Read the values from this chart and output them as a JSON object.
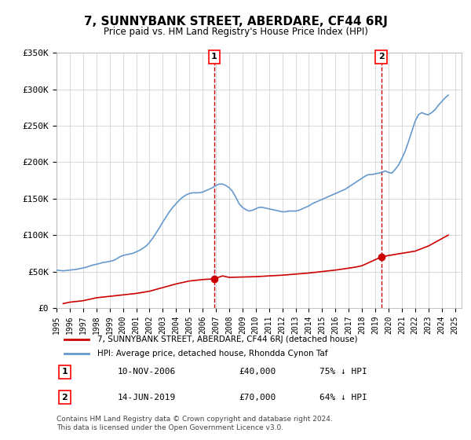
{
  "title": "7, SUNNYBANK STREET, ABERDARE, CF44 6RJ",
  "subtitle": "Price paid vs. HM Land Registry's House Price Index (HPI)",
  "ylabel_ticks": [
    "£0",
    "£50K",
    "£100K",
    "£150K",
    "£200K",
    "£250K",
    "£300K",
    "£350K"
  ],
  "ylim": [
    0,
    350000
  ],
  "yticks": [
    0,
    50000,
    100000,
    150000,
    200000,
    250000,
    300000,
    350000
  ],
  "xmin": 1995.0,
  "xmax": 2025.5,
  "background_color": "#ffffff",
  "grid_color": "#cccccc",
  "hpi_color": "#6699cc",
  "price_color": "#cc0000",
  "vline_color": "#cc0000",
  "vline_style": "dashed",
  "marker1_x": 2006.87,
  "marker1_y": 40000,
  "marker1_label": "1",
  "marker1_date": "10-NOV-2006",
  "marker1_price": "£40,000",
  "marker1_pct": "75% ↓ HPI",
  "marker2_x": 2019.45,
  "marker2_y": 70000,
  "marker2_label": "2",
  "marker2_date": "14-JUN-2019",
  "marker2_price": "£70,000",
  "marker2_pct": "64% ↓ HPI",
  "legend_line1": "7, SUNNYBANK STREET, ABERDARE, CF44 6RJ (detached house)",
  "legend_line2": "HPI: Average price, detached house, Rhondda Cynon Taf",
  "footer1": "Contains HM Land Registry data © Crown copyright and database right 2024.",
  "footer2": "This data is licensed under the Open Government Licence v3.0.",
  "hpi_data_x": [
    1995.0,
    1995.25,
    1995.5,
    1995.75,
    1996.0,
    1996.25,
    1996.5,
    1996.75,
    1997.0,
    1997.25,
    1997.5,
    1997.75,
    1998.0,
    1998.25,
    1998.5,
    1998.75,
    1999.0,
    1999.25,
    1999.5,
    1999.75,
    2000.0,
    2000.25,
    2000.5,
    2000.75,
    2001.0,
    2001.25,
    2001.5,
    2001.75,
    2002.0,
    2002.25,
    2002.5,
    2002.75,
    2003.0,
    2003.25,
    2003.5,
    2003.75,
    2004.0,
    2004.25,
    2004.5,
    2004.75,
    2005.0,
    2005.25,
    2005.5,
    2005.75,
    2006.0,
    2006.25,
    2006.5,
    2006.75,
    2007.0,
    2007.25,
    2007.5,
    2007.75,
    2008.0,
    2008.25,
    2008.5,
    2008.75,
    2009.0,
    2009.25,
    2009.5,
    2009.75,
    2010.0,
    2010.25,
    2010.5,
    2010.75,
    2011.0,
    2011.25,
    2011.5,
    2011.75,
    2012.0,
    2012.25,
    2012.5,
    2012.75,
    2013.0,
    2013.25,
    2013.5,
    2013.75,
    2014.0,
    2014.25,
    2014.5,
    2014.75,
    2015.0,
    2015.25,
    2015.5,
    2015.75,
    2016.0,
    2016.25,
    2016.5,
    2016.75,
    2017.0,
    2017.25,
    2017.5,
    2017.75,
    2018.0,
    2018.25,
    2018.5,
    2018.75,
    2019.0,
    2019.25,
    2019.5,
    2019.75,
    2020.0,
    2020.25,
    2020.5,
    2020.75,
    2021.0,
    2021.25,
    2021.5,
    2021.75,
    2022.0,
    2022.25,
    2022.5,
    2022.75,
    2023.0,
    2023.25,
    2023.5,
    2023.75,
    2024.0,
    2024.25,
    2024.5
  ],
  "hpi_data_y": [
    52000,
    51500,
    51000,
    51500,
    52000,
    52500,
    53000,
    54000,
    55000,
    56000,
    57500,
    59000,
    60000,
    61000,
    62500,
    63000,
    64000,
    65000,
    67000,
    70000,
    72000,
    73000,
    74000,
    75000,
    77000,
    79000,
    82000,
    85000,
    90000,
    96000,
    103000,
    110000,
    118000,
    125000,
    132000,
    138000,
    143000,
    148000,
    152000,
    155000,
    157000,
    158000,
    158000,
    158000,
    159000,
    161000,
    163000,
    165000,
    168000,
    170000,
    170000,
    168000,
    165000,
    160000,
    152000,
    143000,
    138000,
    135000,
    133000,
    134000,
    136000,
    138000,
    138000,
    137000,
    136000,
    135000,
    134000,
    133000,
    132000,
    132000,
    133000,
    133000,
    133000,
    134000,
    136000,
    138000,
    140000,
    143000,
    145000,
    147000,
    149000,
    151000,
    153000,
    155000,
    157000,
    159000,
    161000,
    163000,
    166000,
    169000,
    172000,
    175000,
    178000,
    181000,
    183000,
    183000,
    184000,
    185000,
    186000,
    188000,
    186000,
    185000,
    190000,
    196000,
    205000,
    215000,
    228000,
    242000,
    256000,
    265000,
    268000,
    266000,
    265000,
    268000,
    272000,
    278000,
    283000,
    288000,
    292000
  ],
  "price_data_x": [
    1995.5,
    1996.0,
    1997.0,
    1997.5,
    1998.0,
    1999.0,
    2000.0,
    2001.0,
    2002.0,
    2003.0,
    2004.0,
    2005.0,
    2006.0,
    2006.87,
    2007.5,
    2008.0,
    2010.0,
    2012.0,
    2014.0,
    2015.0,
    2016.0,
    2017.5,
    2018.0,
    2019.45,
    2020.0,
    2021.0,
    2022.0,
    2023.0,
    2023.5,
    2024.0,
    2024.5
  ],
  "price_data_y": [
    6000,
    8000,
    10000,
    12000,
    14000,
    16000,
    18000,
    20000,
    23000,
    28000,
    33000,
    37000,
    39000,
    40000,
    44000,
    42000,
    43000,
    45000,
    48000,
    50000,
    52000,
    56000,
    58000,
    70000,
    72000,
    75000,
    78000,
    85000,
    90000,
    95000,
    100000
  ]
}
